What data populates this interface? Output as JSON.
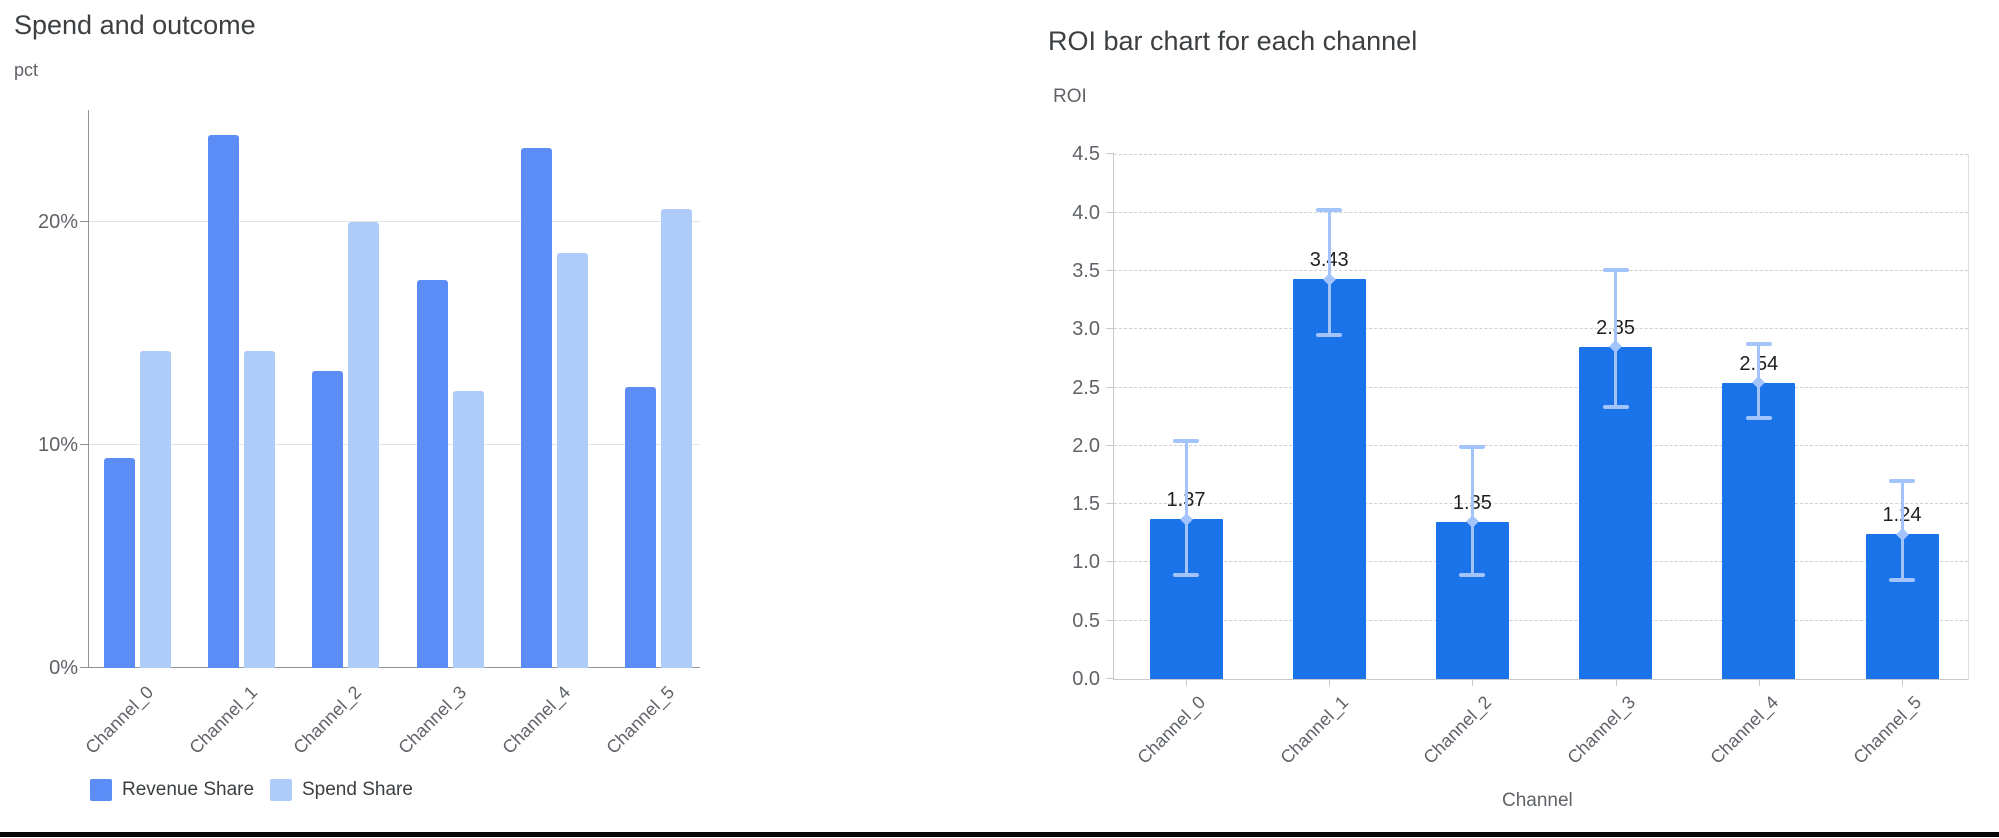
{
  "chart_data": [
    {
      "type": "bar",
      "title": "Spend and outcome",
      "ylabel": "pct",
      "xlabel": "",
      "categories": [
        "Channel_0",
        "Channel_1",
        "Channel_2",
        "Channel_3",
        "Channel_4",
        "Channel_5"
      ],
      "series": [
        {
          "name": "Revenue Share",
          "color": "#5c8df6",
          "values": [
            9.4,
            23.9,
            13.3,
            17.4,
            23.3,
            12.6
          ]
        },
        {
          "name": "Spend Share",
          "color": "#aecbfa",
          "values": [
            14.2,
            14.2,
            20.0,
            12.4,
            18.6,
            20.6
          ]
        }
      ],
      "ylim": [
        0,
        25.0
      ],
      "yticks": [
        0,
        10,
        20
      ],
      "ytick_labels": [
        "0%",
        "10%",
        "20%"
      ],
      "grid": "solid",
      "legend_position": "bottom"
    },
    {
      "type": "bar",
      "title": "ROI bar chart for each channel",
      "ylabel": "ROI",
      "xlabel": "Channel",
      "categories": [
        "Channel_0",
        "Channel_1",
        "Channel_2",
        "Channel_3",
        "Channel_4",
        "Channel_5"
      ],
      "values": [
        1.37,
        3.43,
        1.35,
        2.85,
        2.54,
        1.24
      ],
      "bar_labels": [
        "1.37",
        "3.43",
        "1.35",
        "2.85",
        "2.54",
        "1.24"
      ],
      "error_low": [
        0.89,
        2.95,
        0.89,
        2.33,
        2.24,
        0.85
      ],
      "error_high": [
        2.05,
        4.03,
        2.0,
        3.52,
        2.88,
        1.71
      ],
      "bar_color": "#1a73e8",
      "error_color": "#a3c4fa",
      "ylim": [
        0,
        4.5
      ],
      "yticks": [
        0.0,
        0.5,
        1.0,
        1.5,
        2.0,
        2.5,
        3.0,
        3.5,
        4.0,
        4.5
      ],
      "ytick_labels": [
        "0.0",
        "0.5",
        "1.0",
        "1.5",
        "2.0",
        "2.5",
        "3.0",
        "3.5",
        "4.0",
        "4.5"
      ],
      "grid": "dashed",
      "legend_position": "none"
    }
  ],
  "colors": {
    "grid_solid": "#e2e2e2",
    "grid_dashed": "#cfcfcf",
    "axis_left_chart": "#8f949a",
    "axis_right_chart": "#c7cacd",
    "plot_border_right_chart": "#e0e0e0",
    "title_text": "#3c4043",
    "tick_text": "#5f6368",
    "value_label_text": "#1f1f1f",
    "bottom_border": "#060606"
  }
}
